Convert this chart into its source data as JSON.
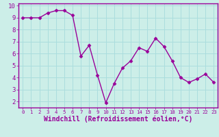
{
  "x": [
    0,
    1,
    2,
    3,
    4,
    5,
    6,
    7,
    8,
    9,
    10,
    11,
    12,
    13,
    14,
    15,
    16,
    17,
    18,
    19,
    20,
    21,
    22,
    23
  ],
  "y": [
    9.0,
    9.0,
    9.0,
    9.4,
    9.6,
    9.6,
    9.2,
    5.8,
    6.7,
    4.2,
    1.9,
    3.5,
    4.8,
    5.4,
    6.5,
    6.2,
    7.3,
    6.6,
    5.4,
    4.0,
    3.6,
    3.9,
    4.3,
    3.6
  ],
  "xlabel": "Windchill (Refroidissement éolien,°C)",
  "line_color": "#990099",
  "marker": "D",
  "marker_size": 2.5,
  "linewidth": 1.0,
  "bg_color": "#cceee8",
  "grid_color": "#aadddd",
  "spine_color": "#990099",
  "axis_label_color": "#990099",
  "tick_label_color": "#990099",
  "xlim": [
    -0.5,
    23.5
  ],
  "ylim": [
    1.5,
    10.2
  ],
  "yticks": [
    2,
    3,
    4,
    5,
    6,
    7,
    8,
    9,
    10
  ],
  "xticks": [
    0,
    1,
    2,
    3,
    4,
    5,
    6,
    7,
    8,
    9,
    10,
    11,
    12,
    13,
    14,
    15,
    16,
    17,
    18,
    19,
    20,
    21,
    22,
    23
  ],
  "xlabel_fontsize": 7.0,
  "xtick_fontsize": 5.2,
  "ytick_fontsize": 6.5
}
